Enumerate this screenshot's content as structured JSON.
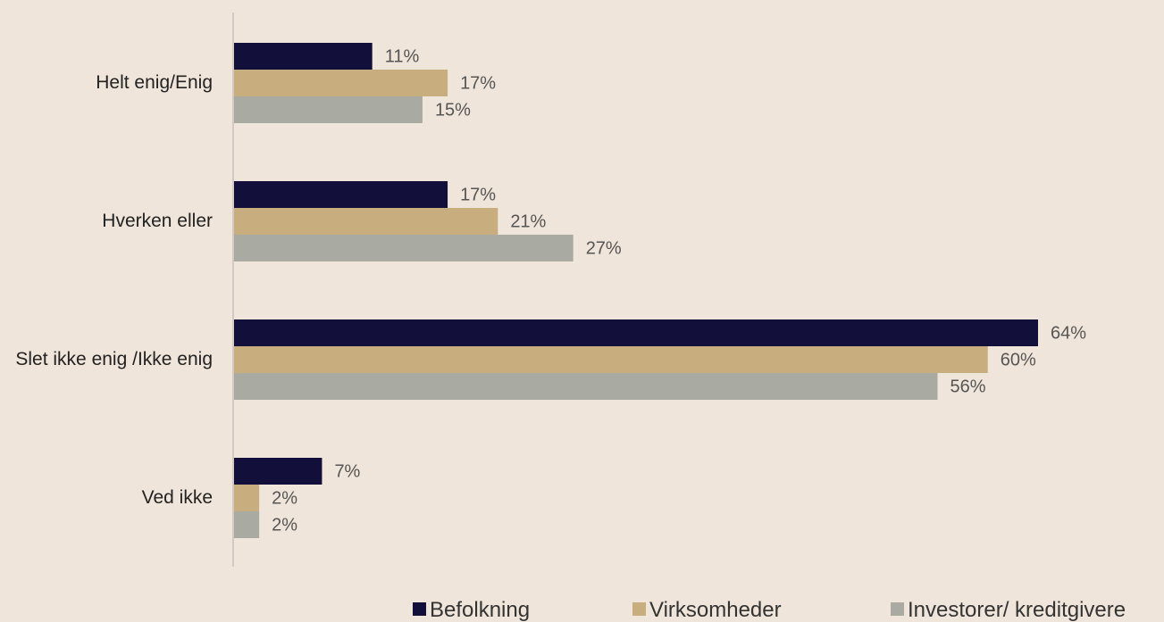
{
  "chart_data": {
    "type": "bar",
    "orientation": "horizontal",
    "categories": [
      "Helt enig/Enig",
      "Hverken eller",
      "Slet ikke enig /Ikke enig",
      "Ved ikke"
    ],
    "series": [
      {
        "name": "Befolkning",
        "color": "#12103a",
        "values": [
          11,
          17,
          64,
          7
        ],
        "value_labels": [
          "11%",
          "17%",
          "64%",
          "7%"
        ]
      },
      {
        "name": "Virksomheder",
        "color": "#c8ad7f",
        "values": [
          17,
          21,
          60,
          2
        ],
        "value_labels": [
          "17%",
          "21%",
          "60%",
          "2%"
        ]
      },
      {
        "name": "Investorer/ kreditgivere",
        "color": "#a9aba3",
        "values": [
          15,
          27,
          56,
          2
        ],
        "value_labels": [
          "15%",
          "27%",
          "56%",
          "2%"
        ]
      }
    ],
    "legend": "bottom"
  }
}
